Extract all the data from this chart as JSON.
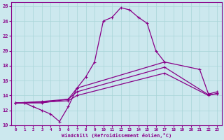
{
  "xlabel": "Windchill (Refroidissement éolien,°C)",
  "background_color": "#cce8ee",
  "grid_color": "#a8d4d8",
  "line_color": "#880088",
  "xlim": [
    -0.5,
    23.5
  ],
  "ylim": [
    10,
    26.5
  ],
  "xticks": [
    0,
    1,
    2,
    3,
    4,
    5,
    6,
    7,
    8,
    9,
    10,
    11,
    12,
    13,
    14,
    15,
    16,
    17,
    18,
    19,
    20,
    21,
    22,
    23
  ],
  "yticks": [
    10,
    12,
    14,
    16,
    18,
    20,
    22,
    24,
    26
  ],
  "curve1": {
    "x": [
      0,
      1,
      2,
      3,
      4,
      5,
      6,
      7,
      8,
      9,
      10,
      11,
      12,
      13,
      14,
      15,
      16,
      17
    ],
    "y": [
      13.0,
      13.0,
      12.5,
      12.0,
      11.5,
      10.5,
      12.5,
      15.0,
      16.5,
      18.5,
      24.0,
      24.5,
      25.8,
      25.5,
      24.5,
      23.7,
      20.0,
      18.5
    ]
  },
  "curve2": {
    "x": [
      0,
      1,
      3,
      6,
      7,
      17,
      21,
      22,
      23
    ],
    "y": [
      13.0,
      13.0,
      13.0,
      13.5,
      15.0,
      18.5,
      17.5,
      14.2,
      14.5
    ]
  },
  "curve3": {
    "x": [
      0,
      3,
      6,
      7,
      17,
      22,
      23
    ],
    "y": [
      13.0,
      13.2,
      13.5,
      14.5,
      17.8,
      14.1,
      14.2
    ]
  },
  "curve4": {
    "x": [
      0,
      3,
      6,
      7,
      17,
      22,
      23
    ],
    "y": [
      13.0,
      13.1,
      13.3,
      14.0,
      17.0,
      14.0,
      14.3
    ]
  }
}
